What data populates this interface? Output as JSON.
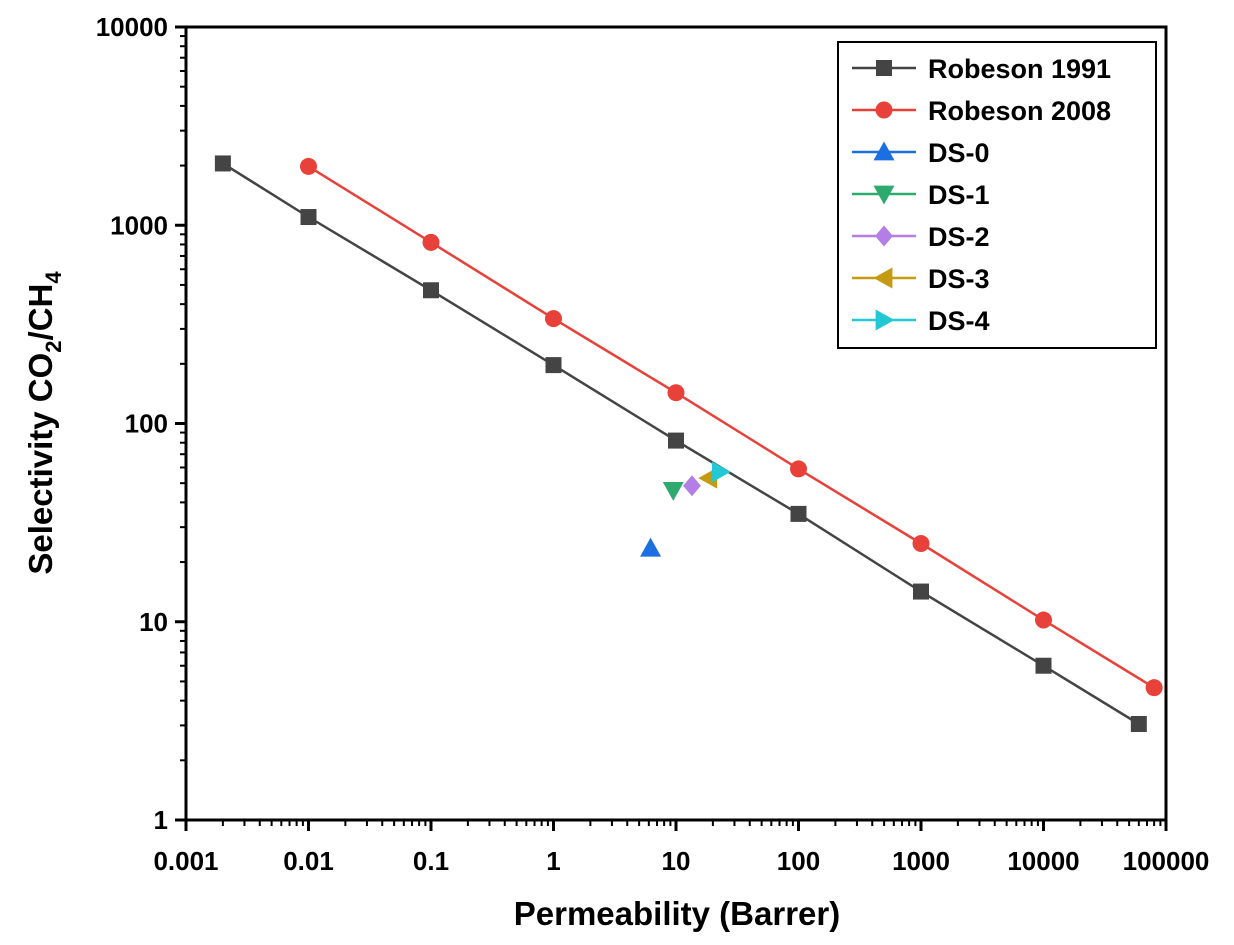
{
  "chart_data": {
    "type": "scatter",
    "xscale": "log",
    "yscale": "log",
    "xlim": [
      0.001,
      100000
    ],
    "ylim": [
      1,
      10000
    ],
    "xticks": [
      "0.001",
      "0.01",
      "0.1",
      "1",
      "10",
      "100",
      "1000",
      "10000",
      "100000"
    ],
    "yticks": [
      "1",
      "10",
      "100",
      "1000",
      "10000"
    ],
    "xlabel": "Permeability (Barrer)",
    "ylabel": {
      "prefix": "Selectivity CO",
      "sub1": "2",
      "mid": "/CH",
      "sub2": "4"
    },
    "legend_position": "top-right",
    "series": [
      {
        "name": "Robeson 1991",
        "marker": "square",
        "color": "#444444",
        "line": true,
        "points": [
          [
            0.002,
            2050
          ],
          [
            0.01,
            1100
          ],
          [
            0.1,
            470
          ],
          [
            1,
            197
          ],
          [
            10,
            82
          ],
          [
            100,
            35
          ],
          [
            1000,
            14.2
          ],
          [
            10000,
            6.0
          ],
          [
            60000,
            3.05
          ]
        ]
      },
      {
        "name": "Robeson 2008",
        "marker": "circle",
        "color": "#e8413a",
        "line": true,
        "points": [
          [
            0.01,
            1980
          ],
          [
            0.1,
            820
          ],
          [
            1,
            338
          ],
          [
            10,
            143
          ],
          [
            100,
            59
          ],
          [
            1000,
            24.8
          ],
          [
            10000,
            10.2
          ],
          [
            80000,
            4.65
          ]
        ]
      },
      {
        "name": "DS-0",
        "marker": "triangle-up",
        "color": "#1b6fe0",
        "line": false,
        "points": [
          [
            6.2,
            23.5
          ]
        ]
      },
      {
        "name": "DS-1",
        "marker": "triangle-down",
        "color": "#2faa6e",
        "line": false,
        "points": [
          [
            9.5,
            46
          ]
        ]
      },
      {
        "name": "DS-2",
        "marker": "diamond",
        "color": "#b37fe6",
        "line": false,
        "points": [
          [
            13.5,
            48.5
          ]
        ]
      },
      {
        "name": "DS-3",
        "marker": "triangle-left",
        "color": "#c49a10",
        "line": false,
        "points": [
          [
            18.5,
            53
          ]
        ]
      },
      {
        "name": "DS-4",
        "marker": "triangle-right",
        "color": "#22c9d4",
        "line": false,
        "points": [
          [
            23,
            57
          ]
        ]
      }
    ]
  }
}
